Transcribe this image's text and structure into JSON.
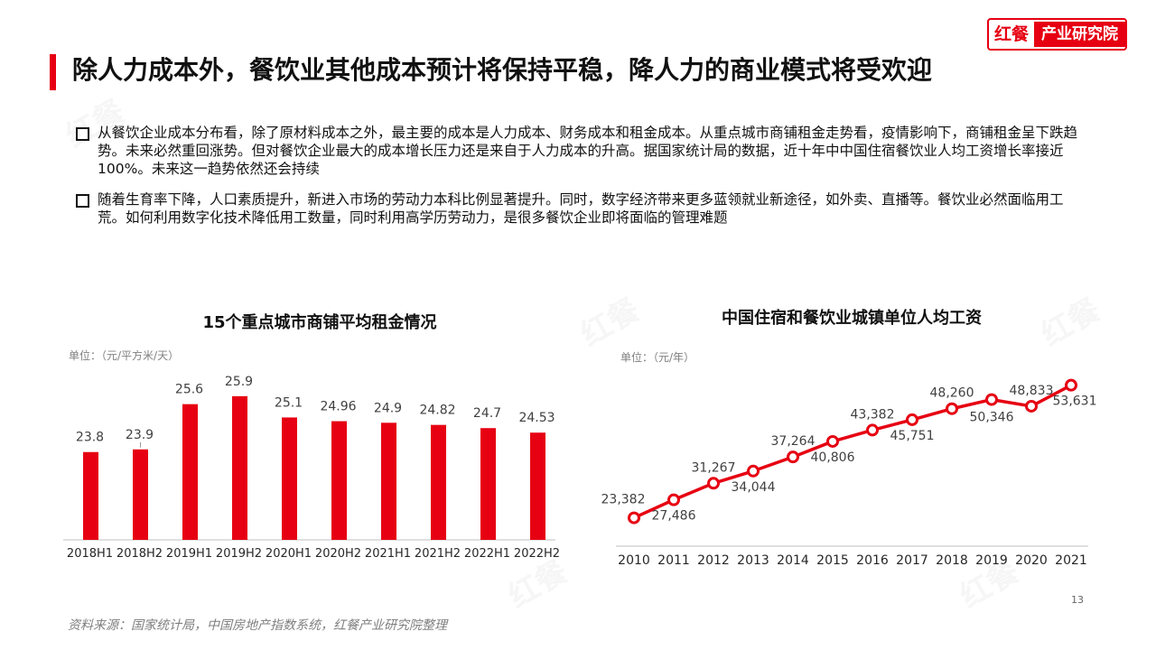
{
  "header": {
    "logo_mark": "红餐",
    "logo_text": "产业研究院",
    "title": "除人力成本外，餐饮业其他成本预计将保持平稳，降人力的商业模式将受欢迎"
  },
  "bullets": [
    "从餐饮企业成本分布看，除了原材料成本之外，最主要的成本是人力成本、财务成本和租金成本。从重点城市商铺租金走势看，疫情影响下，商铺租金呈下跌趋势。未来必然重回涨势。但对餐饮企业最大的成本增长压力还是来自于人力成本的升高。据国家统计局的数据，近十年中中国住宿餐饮业人均工资增长率接近100%。未来这一趋势依然还会持续",
    "随着生育率下降，人口素质提升，新进入市场的劳动力本科比例显著提升。同时，数字经济带来更多蓝领就业新途径，如外卖、直播等。餐饮业必然面临用工荒。如何利用数字化技术降低用工数量，同时利用高学历劳动力，是很多餐饮企业即将面临的管理难题"
  ],
  "chart_data": [
    {
      "type": "bar",
      "title": "15个重点城市商铺平均租金情况",
      "unit": "单位：（元/平方米/天）",
      "categories": [
        "2018H1",
        "2018H2",
        "2019H1",
        "2019H2",
        "2020H1",
        "2020H2",
        "2021H1",
        "2021H2",
        "2022H1",
        "2022H2"
      ],
      "values": [
        23.8,
        23.9,
        25.6,
        25.9,
        25.1,
        24.96,
        24.9,
        24.82,
        24.7,
        24.53
      ],
      "value_labels": [
        "23.8",
        "23.9",
        "25.6",
        "25.9",
        "25.1",
        "24.96",
        "24.9",
        "24.82",
        "24.7",
        "24.53"
      ],
      "ylim": [
        20.5,
        26.2
      ],
      "color": "#e60012"
    },
    {
      "type": "line",
      "title": "中国住宿和餐饮业城镇单位人均工资",
      "unit": "单位：（元/年）",
      "categories": [
        "2010",
        "2011",
        "2012",
        "2013",
        "2014",
        "2015",
        "2016",
        "2017",
        "2018",
        "2019",
        "2020",
        "2021"
      ],
      "values": [
        23382,
        27486,
        31267,
        34044,
        37264,
        40806,
        43382,
        45751,
        48260,
        50346,
        48833,
        53631
      ],
      "value_labels": [
        "23,382",
        "27,486",
        "31,267",
        "34,044",
        "37,264",
        "40,806",
        "43,382",
        "45,751",
        "48,260",
        "50,346",
        "48,833",
        "53,631"
      ],
      "ylim": [
        20000,
        55000
      ],
      "color": "#e60012"
    }
  ],
  "footer": {
    "source": "资料来源：国家统计局，中国房地产指数系统，红餐产业研究院整理",
    "page": "13"
  }
}
